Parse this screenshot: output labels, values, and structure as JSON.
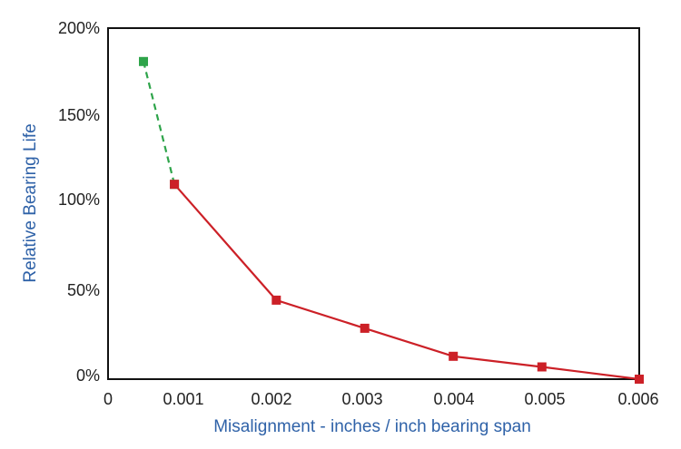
{
  "chart_data": {
    "type": "line",
    "title": "",
    "xlabel": "Misalignment - inches / inch bearing span",
    "ylabel": "Relative Bearing Life",
    "xlim": [
      0,
      0.006
    ],
    "ylim": [
      0,
      200
    ],
    "x_ticks": [
      "0",
      "0.001",
      "0.002",
      "0.003",
      "0.004",
      "0.005",
      "0.006"
    ],
    "y_ticks": [
      "0%",
      "50%",
      "100%",
      "150%",
      "200%"
    ],
    "grid": false,
    "legend": "none",
    "series": [
      {
        "style": "dashed",
        "color": "#2ea44a",
        "marker": "square",
        "x": [
          0.0004,
          0.00075
        ],
        "y": [
          181,
          111
        ]
      },
      {
        "style": "solid",
        "color": "#cc2027",
        "marker": "square",
        "x": [
          0.00075,
          0.0019,
          0.0029,
          0.0039,
          0.0049,
          0.006
        ],
        "y": [
          111,
          45,
          29,
          13,
          7,
          0
        ]
      }
    ]
  }
}
